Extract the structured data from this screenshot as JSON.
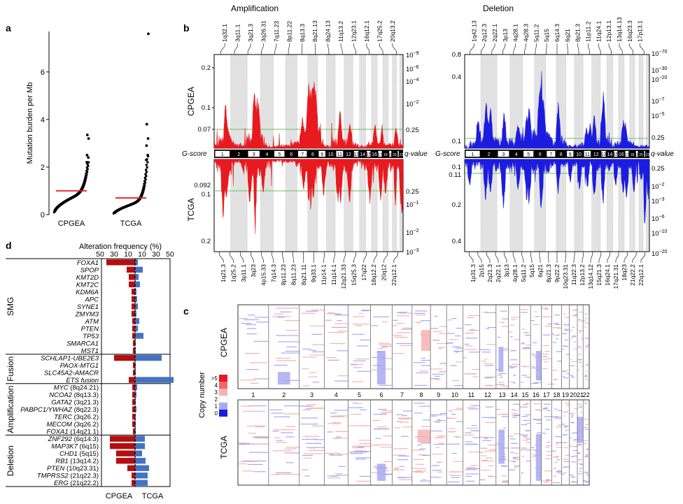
{
  "colors": {
    "amp": "#e8191f",
    "del": "#1c1ce0",
    "cpgea_bar": "#b40e0e",
    "tcga_bar": "#4472c4",
    "threshold": "#6cbf55",
    "shade": "#e2e2e2",
    "median": "#e8191f",
    "heat_amp_light": "#f6b3b3",
    "heat_del_light": "#a9a9f3"
  },
  "chart_data": [
    {
      "panel": "a",
      "type": "scatter",
      "ylabel": "Mutation burden per Mb",
      "categories": [
        "CPGEA",
        "TCGA"
      ],
      "ylim": [
        0,
        7.7
      ],
      "yticks": [
        0,
        2,
        4,
        6
      ],
      "medians": [
        1.0,
        0.7
      ],
      "series": [
        {
          "max_values": [
            2.2,
            2.4,
            2.5,
            3.2,
            3.35
          ]
        },
        {
          "max_values": [
            2.3,
            2.5,
            2.9,
            3.2,
            3.8,
            7.6
          ]
        }
      ]
    },
    {
      "panel": "b",
      "type": "area",
      "title_amp": "Amplification",
      "title_del": "Deletion",
      "gscore_label": "G-score",
      "qvalue_label": "q-value",
      "row_labels": [
        "CPGEA",
        "TCGA"
      ],
      "chromosomes": [
        "1",
        "2",
        "3",
        "4",
        "5",
        "6",
        "7",
        "8",
        "9",
        "10",
        "11",
        "12",
        "13",
        "14",
        "15",
        "16",
        "17",
        "18",
        "19",
        "20",
        "21",
        "22"
      ],
      "amp": {
        "top_gscore_ticks": [
          "0.2",
          "0.1",
          "0.07"
        ],
        "top_q_ticks": [
          {
            "b": "10",
            "e": "−9"
          },
          {
            "b": "10",
            "e": "−6"
          },
          {
            "b": "10",
            "e": "−4"
          },
          {
            "b": "10",
            "e": "−2"
          },
          {
            "b": "0.25",
            "e": ""
          }
        ],
        "bottom_gscore_ticks": [
          "0.092",
          "0.1",
          "0.2"
        ],
        "bottom_q_ticks": [
          {
            "b": "0.25",
            "e": ""
          },
          {
            "b": "10",
            "e": "−1"
          },
          {
            "b": "10",
            "e": "−2"
          },
          {
            "b": "10",
            "e": "−3"
          }
        ],
        "top_cytobands": [
          "1q32.1",
          "3q11.1",
          "3q21.3",
          "3q26.31",
          "7q11.23",
          "8p11.22",
          "8q13.3",
          "8q21.13",
          "8q24.13",
          "11q13.2",
          "12q23.1",
          "16q12.1",
          "17q25.2",
          "20q13.2"
        ],
        "bottom_cytobands": [
          "1q21.3",
          "1q25.2",
          "3p11.1",
          "3q23",
          "4p15.33",
          "7q14.3",
          "8p11.23",
          "8q11.23",
          "8q21.11",
          "9q33.1",
          "11p14.1",
          "11q14.1",
          "12q21.33",
          "15q25.3",
          "17q22",
          "18q12.2",
          "20q12",
          "22q12.1"
        ]
      },
      "del": {
        "top_gscore_ticks": [
          "0.8",
          "0.4",
          "0.1"
        ],
        "top_q_ticks": [
          {
            "b": "10",
            "e": "−70"
          },
          {
            "b": "10",
            "e": "−30"
          },
          {
            "b": "10",
            "e": "−20"
          },
          {
            "b": "10",
            "e": "−7"
          },
          {
            "b": "10",
            "e": "−5"
          },
          {
            "b": "0.25",
            "e": ""
          }
        ],
        "bottom_gscore_ticks": [
          "0.1",
          "0.11",
          "0.2",
          "0.4"
        ],
        "bottom_q_ticks": [
          {
            "b": "0.25",
            "e": ""
          },
          {
            "b": "10",
            "e": "−2"
          },
          {
            "b": "10",
            "e": "−3"
          },
          {
            "b": "10",
            "e": "−6"
          },
          {
            "b": "10",
            "e": "−10"
          },
          {
            "b": "10",
            "e": "−20"
          }
        ],
        "top_cytobands": [
          "1q42.13",
          "2q12.3",
          "2q22.1",
          "3p13",
          "4q28.1",
          "4q28.3",
          "5q11.2",
          "5q15",
          "6q14.3",
          "6q21",
          "8p21.3",
          "11p11.2",
          "11q24.1",
          "12p13.1",
          "13q14.13",
          "16q23.3",
          "17p13.1"
        ],
        "bottom_cytobands": [
          "1p31.3",
          "2p15",
          "2q21.3",
          "2q22.1",
          "3p13",
          "4q28.1",
          "5q11.2",
          "5q15",
          "6q21",
          "8p21.3",
          "9p22.2",
          "10q23.31",
          "11q22.3",
          "12p13.2",
          "13q14.12",
          "15q21.3",
          "16q24.1",
          "17q21.31",
          "18q23",
          "21q22.2",
          "22q12.1"
        ]
      }
    },
    {
      "panel": "c",
      "type": "heatmap",
      "row_labels": [
        "CPGEA",
        "TCGA"
      ],
      "legend_title": "Copy number",
      "legend_levels": [
        ">5",
        "4",
        "3",
        "2",
        "1",
        "0"
      ],
      "chromosomes": [
        "1",
        "2",
        "3",
        "4",
        "5",
        "6",
        "7",
        "8",
        "9",
        "10",
        "11",
        "12",
        "13",
        "14",
        "15",
        "16",
        "17",
        "18",
        "19",
        "20",
        "21",
        "22"
      ]
    },
    {
      "panel": "d",
      "type": "bar",
      "xlabel": "Alteration frequency (%)",
      "xticks_left": [
        "50",
        "30",
        "10"
      ],
      "xticks_right": [
        "10",
        "30",
        "50"
      ],
      "series_names": [
        "CPGEA",
        "TCGA"
      ],
      "groups": [
        {
          "name": "SMG",
          "genes": [
            {
              "label": "FOXA1",
              "cpgea": 41,
              "tcga": 4
            },
            {
              "label": "SPOP",
              "cpgea": 12,
              "tcga": 11
            },
            {
              "label": "KMT2D",
              "cpgea": 9,
              "tcga": 5
            },
            {
              "label": "KMT2C",
              "cpgea": 9,
              "tcga": 7
            },
            {
              "label": "KDM6A",
              "cpgea": 5,
              "tcga": 2
            },
            {
              "label": "APC",
              "cpgea": 5,
              "tcga": 3
            },
            {
              "label": "SYNE1",
              "cpgea": 5,
              "tcga": 4
            },
            {
              "label": "ZMYM3",
              "cpgea": 5,
              "tcga": 2
            },
            {
              "label": "ATM",
              "cpgea": 4,
              "tcga": 6
            },
            {
              "label": "PTEN",
              "cpgea": 4,
              "tcga": 4
            },
            {
              "label": "TP53",
              "cpgea": 4,
              "tcga": 12
            },
            {
              "label": "SMARCA1",
              "cpgea": 3,
              "tcga": 1
            },
            {
              "label": "MST1",
              "cpgea": 3,
              "tcga": 1
            }
          ]
        },
        {
          "name": "Fusion",
          "genes": [
            {
              "label": "SCHLAP1-UBE2E3",
              "cpgea": 30,
              "tcga": 38
            },
            {
              "label": "PAOX-MTG1",
              "cpgea": 3,
              "tcga": 1
            },
            {
              "label": "SLC45A2-AMACR",
              "cpgea": 3,
              "tcga": 1
            },
            {
              "label": "ETS fusion",
              "cpgea": 9,
              "tcga": 55
            }
          ]
        },
        {
          "name": "Amplification",
          "genes": [
            {
              "label": "MYC",
              "band": "(8q24.21)",
              "cpgea": 4,
              "tcga": 3
            },
            {
              "label": "NCOA2",
              "band": "(8q13.3)",
              "cpgea": 4,
              "tcga": 2
            },
            {
              "label": "GATA2",
              "band": "(3q21.3)",
              "cpgea": 4,
              "tcga": 1
            },
            {
              "label": "PABPC1/YWHAZ",
              "band": "(8q22.3)",
              "cpgea": 4,
              "tcga": 2
            },
            {
              "label": "TERC",
              "band": "(3q26.2)",
              "cpgea": 4,
              "tcga": 1
            },
            {
              "label": "MECOM",
              "band": "(3q26.2)",
              "cpgea": 4,
              "tcga": 1
            },
            {
              "label": "FOXA1",
              "band": "(14q21.1)",
              "cpgea": 3,
              "tcga": 1
            }
          ]
        },
        {
          "name": "Deletion",
          "genes": [
            {
              "label": "ZNF292",
              "band": "(6q14.3)",
              "cpgea": 36,
              "tcga": 14
            },
            {
              "label": "MAP3K7",
              "band": "(6q15)",
              "cpgea": 36,
              "tcga": 14
            },
            {
              "label": "CHD1",
              "band": "(5q15)",
              "cpgea": 27,
              "tcga": 10
            },
            {
              "label": "RB1",
              "band": "(13q14.2)",
              "cpgea": 27,
              "tcga": 15
            },
            {
              "label": "PTEN",
              "band": "(10q23.31)",
              "cpgea": 11,
              "tcga": 20
            },
            {
              "label": "TMPRSS2",
              "band": "(21q22.3)",
              "cpgea": 5,
              "tcga": 18
            },
            {
              "label": "ERG",
              "band": "(21q22.2)",
              "cpgea": 5,
              "tcga": 18
            }
          ]
        }
      ]
    }
  ],
  "panels": {
    "a": "a",
    "b": "b",
    "c": "c",
    "d": "d"
  }
}
